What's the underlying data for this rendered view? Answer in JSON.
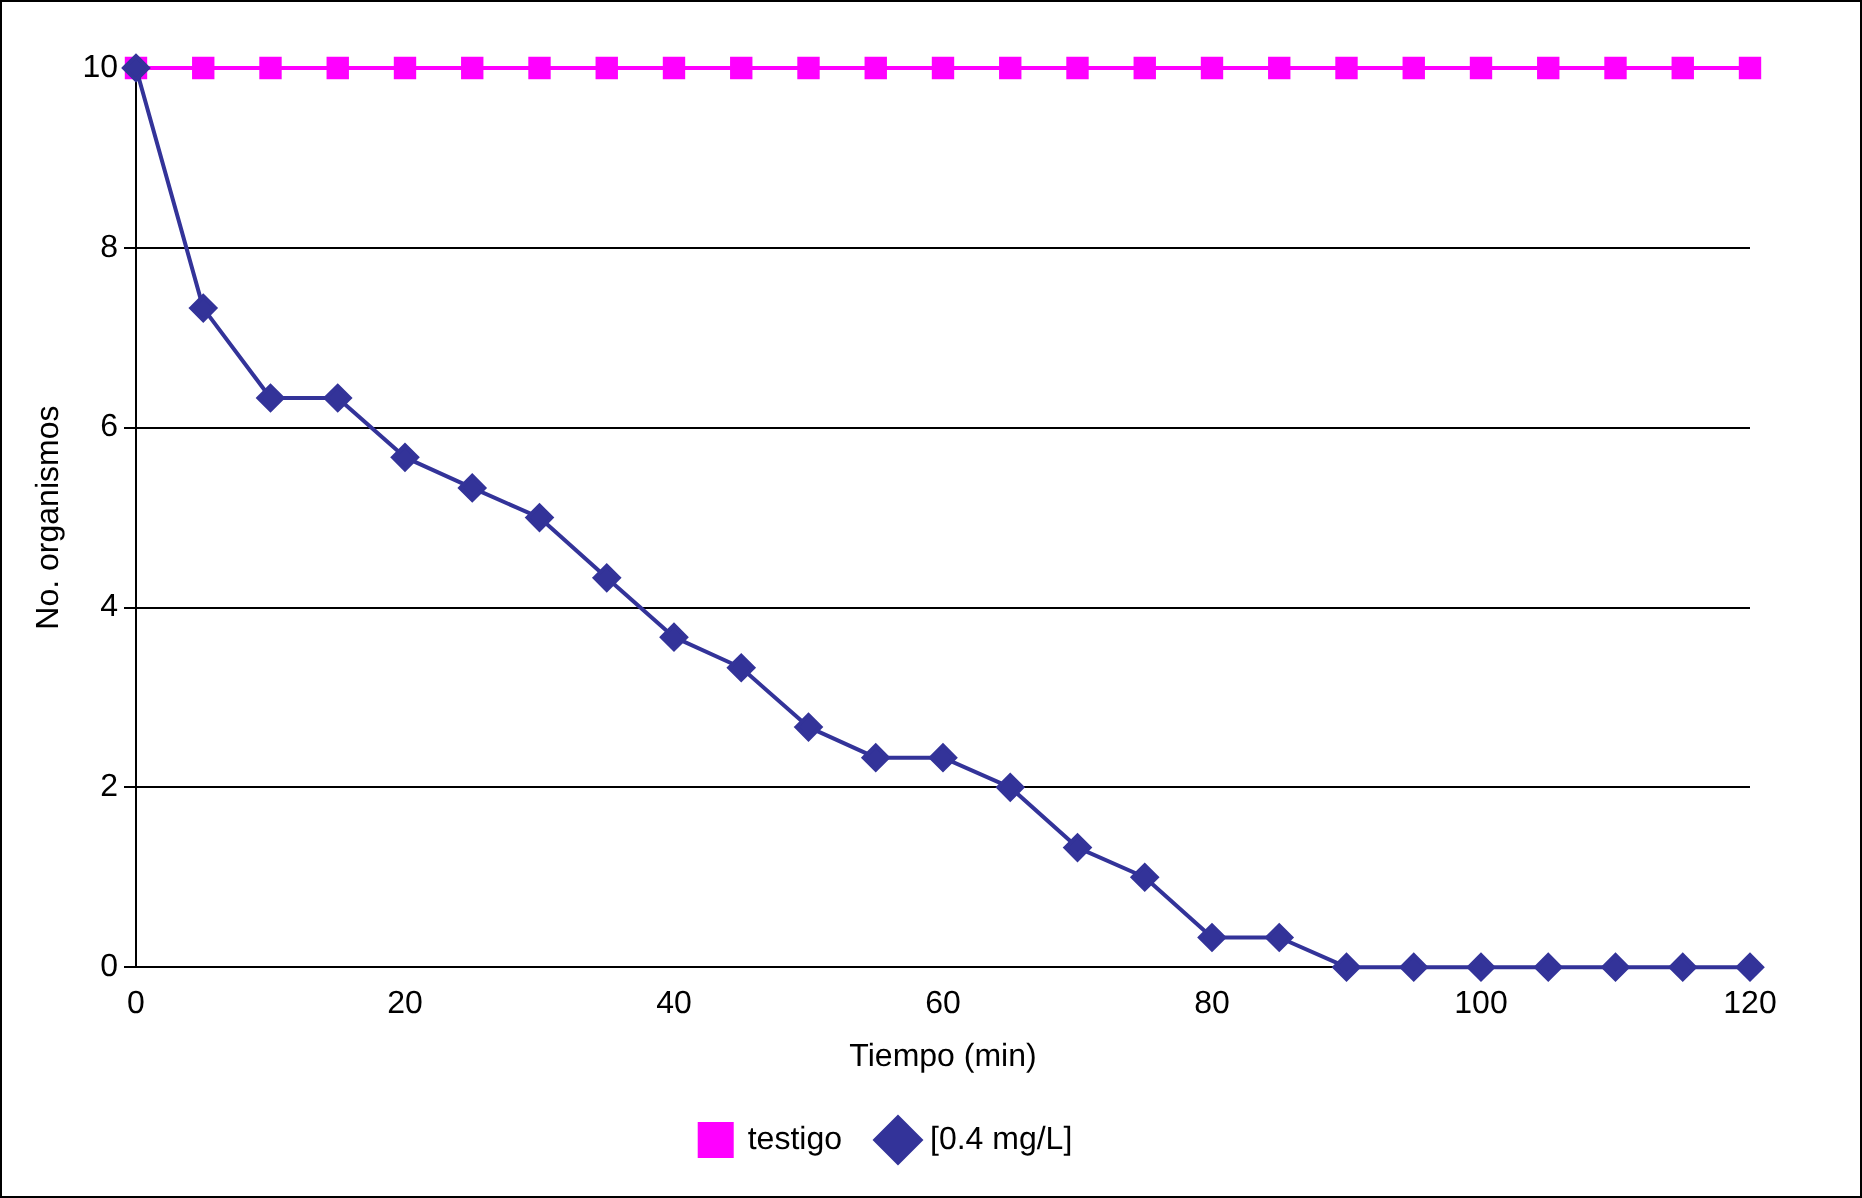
{
  "chart_data": {
    "type": "line",
    "xlabel": "Tiempo (min)",
    "ylabel": "No. organismos",
    "x": [
      0,
      5,
      10,
      15,
      20,
      25,
      30,
      35,
      40,
      45,
      50,
      55,
      60,
      65,
      70,
      75,
      80,
      85,
      90,
      95,
      100,
      105,
      110,
      115,
      120
    ],
    "series": [
      {
        "name": "testigo",
        "color": "#ff00ff",
        "marker": "square",
        "values": [
          10,
          10,
          10,
          10,
          10,
          10,
          10,
          10,
          10,
          10,
          10,
          10,
          10,
          10,
          10,
          10,
          10,
          10,
          10,
          10,
          10,
          10,
          10,
          10,
          10
        ]
      },
      {
        "name": "[0.4 mg/L]",
        "color": "#333399",
        "marker": "diamond",
        "values": [
          10,
          7.33,
          6.33,
          6.33,
          5.67,
          5.33,
          5,
          4.33,
          3.67,
          3.33,
          2.67,
          2.33,
          2.33,
          2,
          1.33,
          1,
          0.33,
          0.33,
          0,
          0,
          0,
          0,
          0,
          0,
          0
        ]
      }
    ],
    "xlim": [
      0,
      120
    ],
    "xticks": [
      0,
      20,
      40,
      60,
      80,
      100,
      120
    ],
    "ylim": [
      0,
      10
    ],
    "yticks": [
      0,
      2,
      4,
      6,
      8,
      10
    ],
    "grid": "y",
    "legend": "bottom"
  }
}
